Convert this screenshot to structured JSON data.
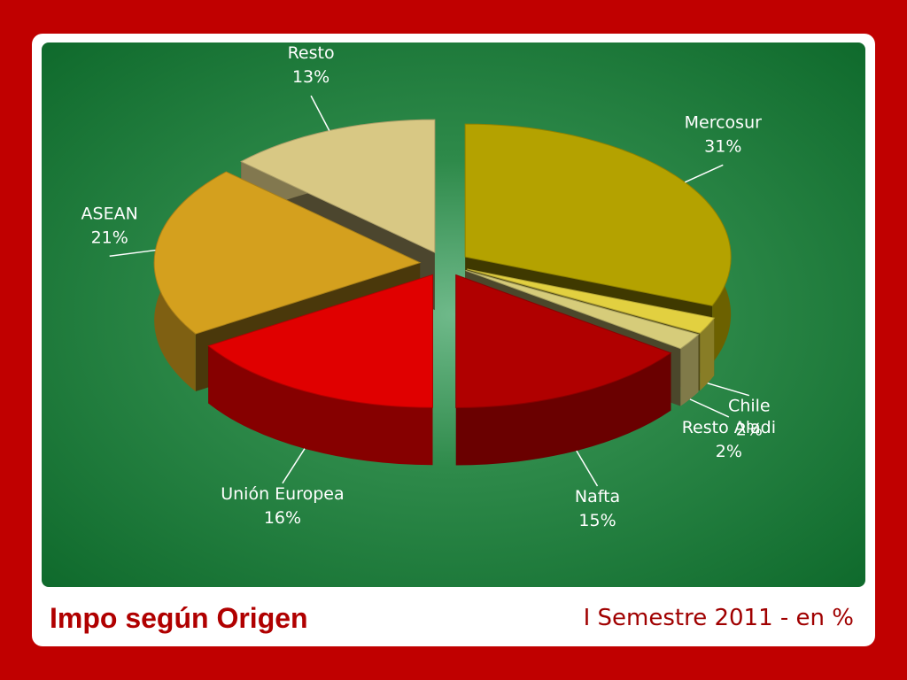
{
  "chart_data": {
    "type": "pie3d",
    "title": "Impo según Origen",
    "subtitle": "I Semestre 2011 - en %",
    "categories": [
      "Mercosur",
      "Chile",
      "Resto Aladi",
      "Nafta",
      "Unión Europea",
      "ASEAN",
      "Resto"
    ],
    "values": [
      31,
      2,
      2,
      15,
      16,
      21,
      13
    ],
    "value_labels": [
      "31%",
      "2%",
      "2%",
      "15%",
      "16%",
      "21%",
      "13%"
    ],
    "colors": [
      "#b4a200",
      "#e2d040",
      "#d6cc7a",
      "#b00000",
      "#e00000",
      "#d4a01e",
      "#d8c884"
    ]
  }
}
